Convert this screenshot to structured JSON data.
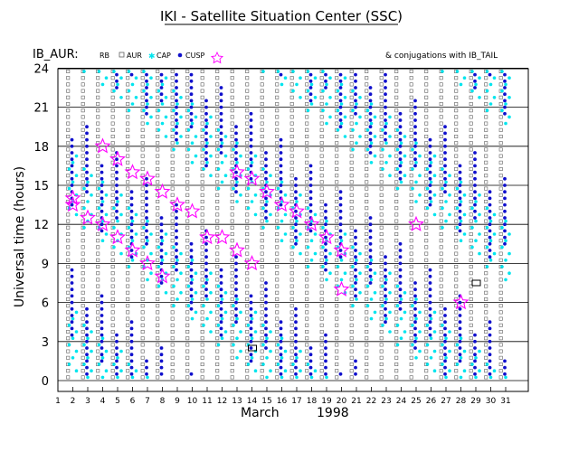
{
  "chart_data": {
    "type": "scatter",
    "title": "IKI - Satellite Situation Center (SSC)",
    "satellite": "IB_AUR:",
    "legend": {
      "rb": "RB",
      "aur": "AUR",
      "cap": "CAP",
      "cusp": "CUSP",
      "conjunctions": "& conjugations with IB_TAIL"
    },
    "ylabel": "Universal time (hours)",
    "xlabel_month": "March",
    "xlabel_year": "1998",
    "x_ticks": [
      1,
      2,
      3,
      4,
      5,
      6,
      7,
      8,
      9,
      10,
      11,
      12,
      13,
      14,
      15,
      16,
      17,
      18,
      19,
      20,
      21,
      22,
      23,
      24,
      25,
      26,
      27,
      28,
      29,
      30,
      31
    ],
    "y_ticks": [
      0,
      3,
      6,
      9,
      12,
      15,
      18,
      21,
      24
    ],
    "xlim": [
      1,
      32
    ],
    "ylim": [
      0,
      24
    ],
    "grid": "horizontal",
    "colors": {
      "rb": "#808080",
      "aur": "#606060",
      "cap": "#00e5ee",
      "cusp": "#1010cc",
      "cusp_star": "#ff00ff",
      "conjunction": "#000000",
      "grid": "#000000"
    },
    "cusp_star_hours": [
      {
        "day": 2,
        "hours": [
          13.5,
          14
        ]
      },
      {
        "day": 3,
        "hours": [
          12.5
        ]
      },
      {
        "day": 4,
        "hours": [
          12,
          18
        ]
      },
      {
        "day": 5,
        "hours": [
          11,
          17
        ]
      },
      {
        "day": 6,
        "hours": [
          10,
          16
        ]
      },
      {
        "day": 7,
        "hours": [
          9,
          15.5
        ]
      },
      {
        "day": 8,
        "hours": [
          8,
          14.5
        ]
      },
      {
        "day": 9,
        "hours": [
          13.5
        ]
      },
      {
        "day": 10,
        "hours": [
          13
        ]
      },
      {
        "day": 11,
        "hours": [
          11
        ]
      },
      {
        "day": 12,
        "hours": [
          11
        ]
      },
      {
        "day": 13,
        "hours": [
          10,
          16
        ]
      },
      {
        "day": 14,
        "hours": [
          9,
          15.5
        ]
      },
      {
        "day": 15,
        "hours": [
          14.5
        ]
      },
      {
        "day": 16,
        "hours": [
          13.5
        ]
      },
      {
        "day": 17,
        "hours": [
          13
        ]
      },
      {
        "day": 18,
        "hours": [
          12
        ]
      },
      {
        "day": 19,
        "hours": [
          11
        ]
      },
      {
        "day": 20,
        "hours": [
          7,
          10
        ]
      },
      {
        "day": 25,
        "hours": [
          12
        ]
      },
      {
        "day": 28,
        "hours": [
          6
        ]
      }
    ],
    "conjunctions": [
      {
        "day": 14,
        "hour": 2.5
      },
      {
        "day": 29,
        "hour": 7.5
      }
    ]
  }
}
